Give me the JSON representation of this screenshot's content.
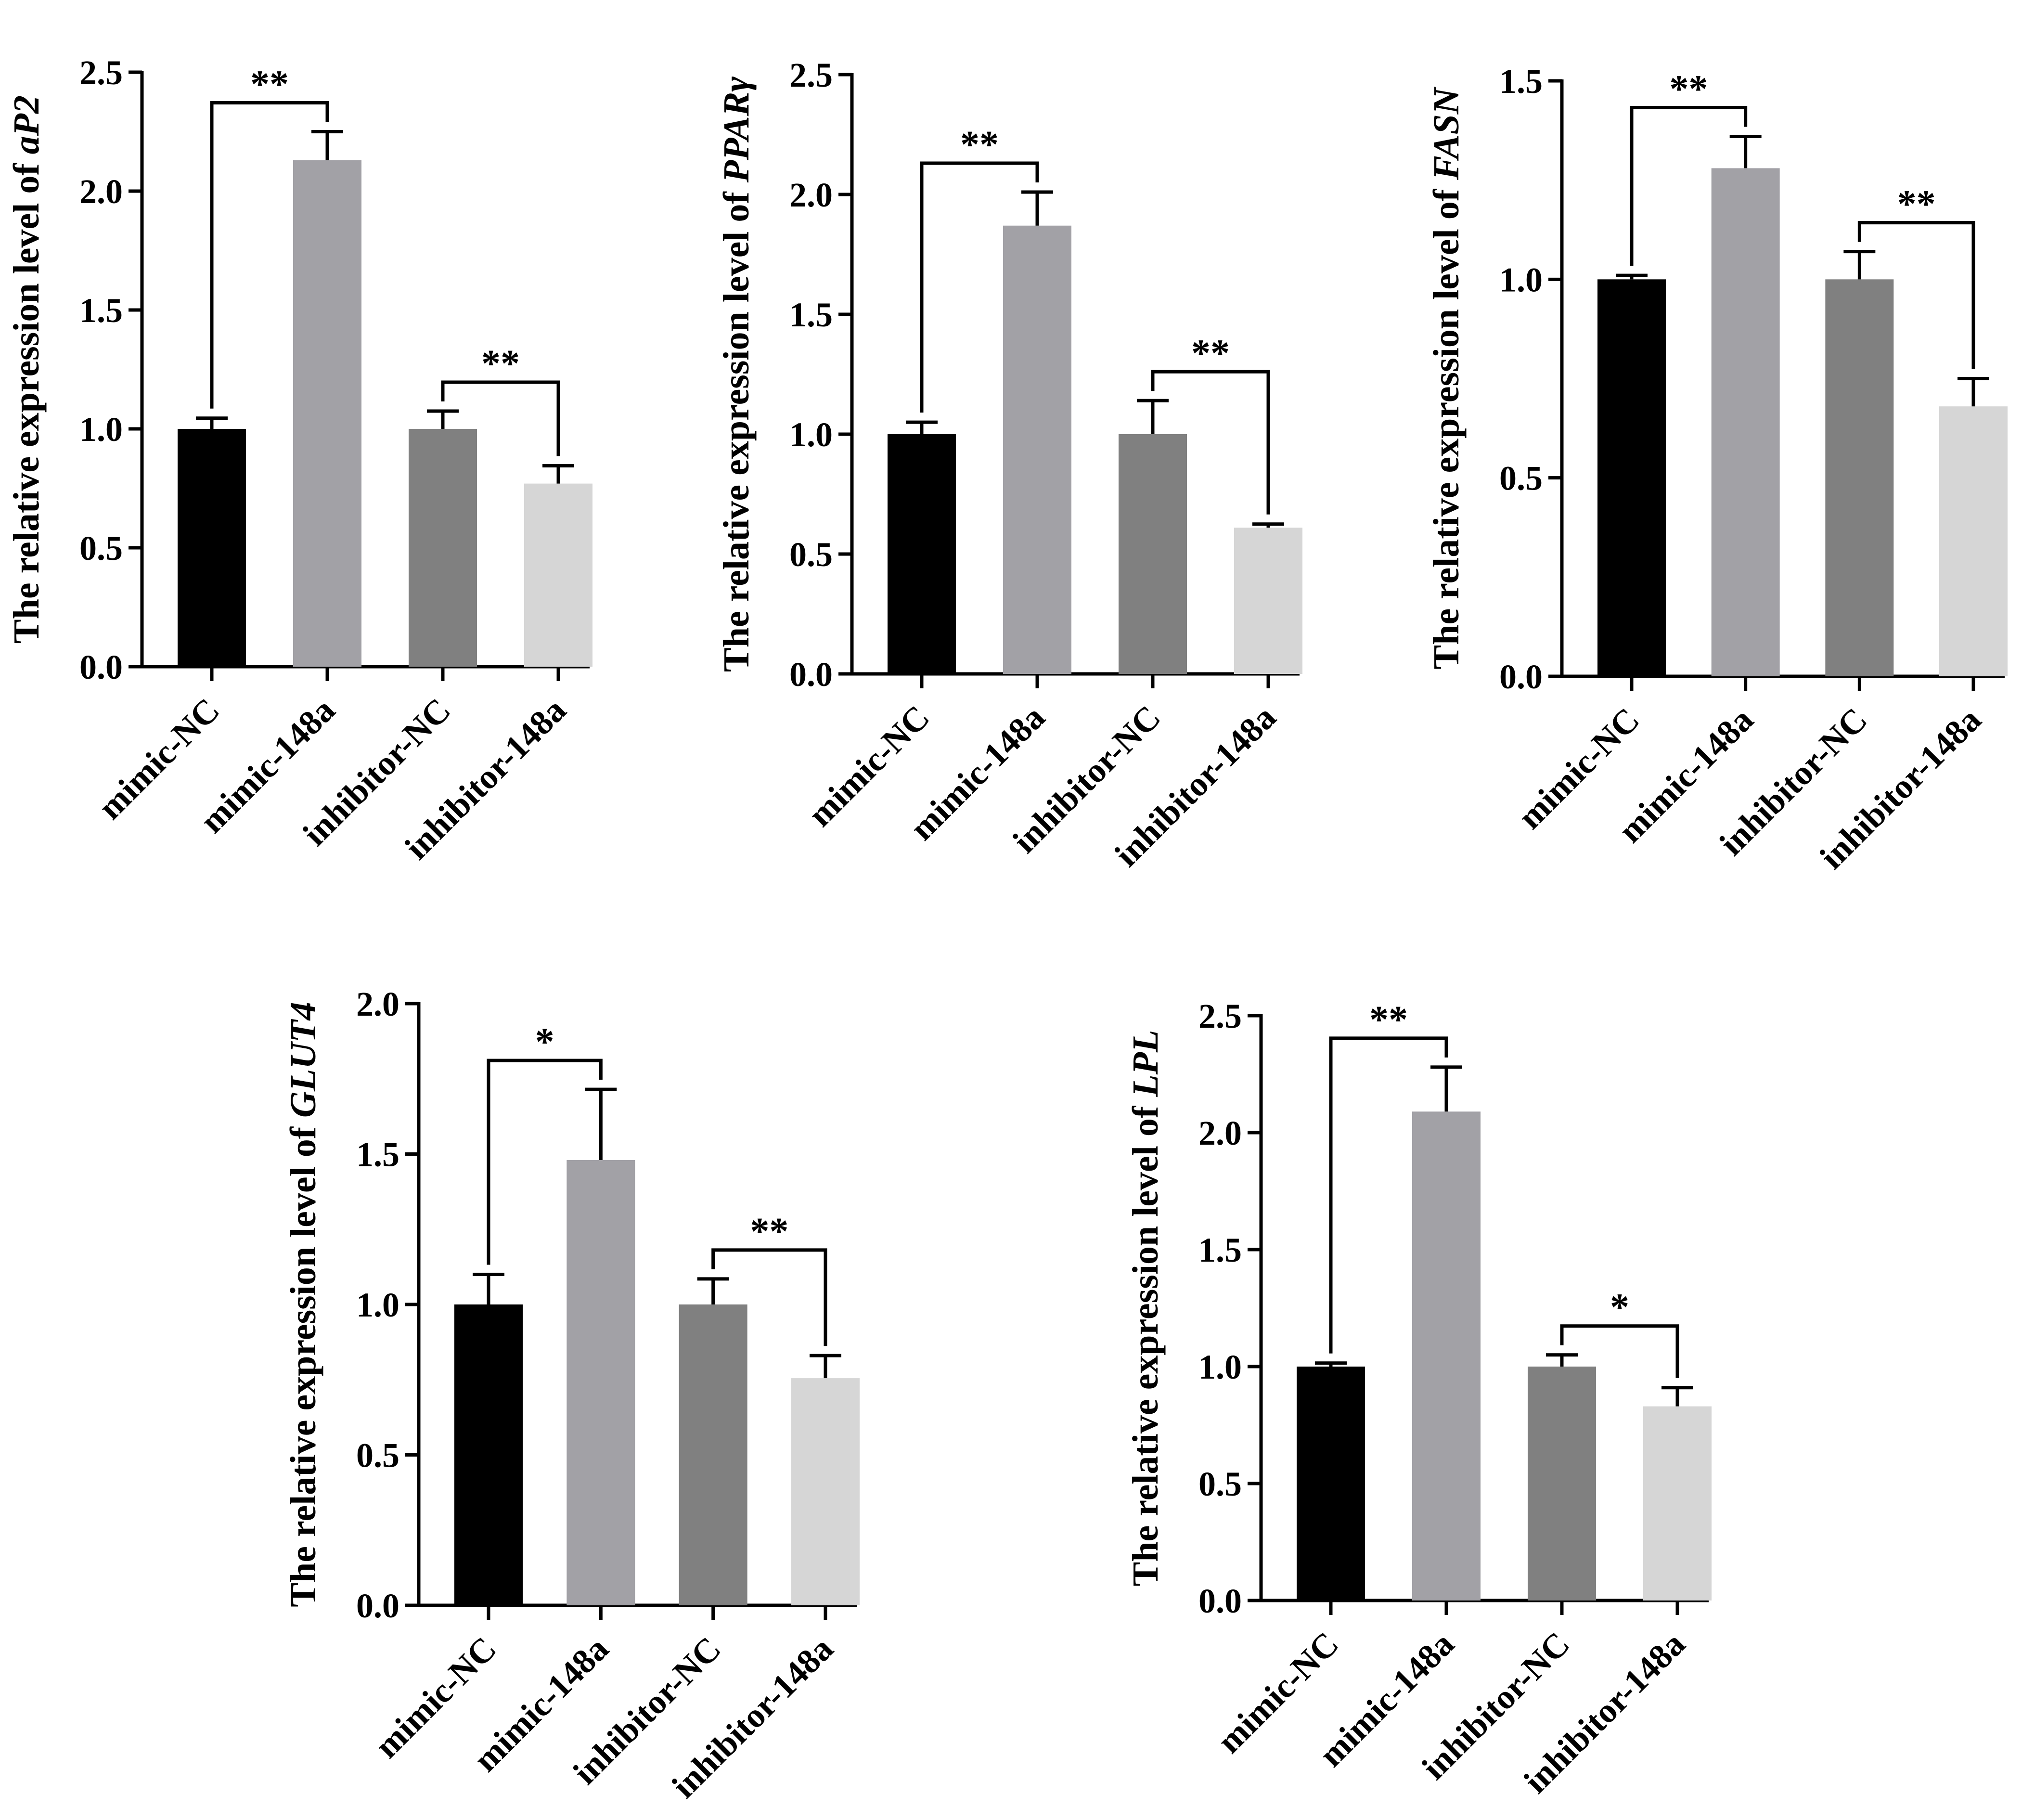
{
  "chart_data": [
    {
      "type": "bar",
      "categories": [
        "mimic-NC",
        "mimic-148a",
        "inhibitor-NC",
        "inhibitor-148a"
      ],
      "values": [
        1.0,
        2.13,
        1.0,
        0.77
      ],
      "errors": [
        0.045,
        0.12,
        0.075,
        0.075
      ],
      "ylabel_prefix": "The relative expression level of ",
      "ylabel_gene": "aP2",
      "ylim": [
        0,
        2.5
      ],
      "yticks": [
        "0.0",
        "0.5",
        "1.0",
        "1.5",
        "2.0",
        "2.5"
      ],
      "significance": [
        {
          "between": [
            0,
            1
          ],
          "label": "**"
        },
        {
          "between": [
            2,
            3
          ],
          "label": "**"
        }
      ],
      "bar_colors": [
        "#000000",
        "#a2a1a6",
        "#808080",
        "#d6d6d6"
      ]
    },
    {
      "type": "bar",
      "categories": [
        "mimic-NC",
        "mimic-148a",
        "inhibitor-NC",
        "inhibitor-148a"
      ],
      "values": [
        1.0,
        1.87,
        1.0,
        0.61
      ],
      "errors": [
        0.05,
        0.14,
        0.14,
        0.015
      ],
      "ylabel_prefix": "The relative expression level of ",
      "ylabel_gene": "PPARγ",
      "ylim": [
        0,
        2.5
      ],
      "yticks": [
        "0.0",
        "0.5",
        "1.0",
        "1.5",
        "2.0",
        "2.5"
      ],
      "significance": [
        {
          "between": [
            0,
            1
          ],
          "label": "**"
        },
        {
          "between": [
            2,
            3
          ],
          "label": "**"
        }
      ],
      "bar_colors": [
        "#000000",
        "#a2a1a6",
        "#808080",
        "#d6d6d6"
      ]
    },
    {
      "type": "bar",
      "categories": [
        "mimic-NC",
        "mimic-148a",
        "inhibitor-NC",
        "inhibitor-148a"
      ],
      "values": [
        1.0,
        1.28,
        1.0,
        0.68
      ],
      "errors": [
        0.01,
        0.08,
        0.07,
        0.07
      ],
      "ylabel_prefix": "The relative expression level of ",
      "ylabel_gene": "FASN",
      "ylim": [
        0,
        1.5
      ],
      "yticks": [
        "0.0",
        "0.5",
        "1.0",
        "1.5"
      ],
      "significance": [
        {
          "between": [
            0,
            1
          ],
          "label": "**"
        },
        {
          "between": [
            2,
            3
          ],
          "label": "**"
        }
      ],
      "bar_colors": [
        "#000000",
        "#a2a1a6",
        "#808080",
        "#d6d6d6"
      ]
    },
    {
      "type": "bar",
      "categories": [
        "mimic-NC",
        "mimic-148a",
        "inhibitor-NC",
        "inhibitor-148a"
      ],
      "values": [
        1.0,
        1.48,
        1.0,
        0.755
      ],
      "errors": [
        0.1,
        0.235,
        0.085,
        0.075
      ],
      "ylabel_prefix": "The relative expression level of ",
      "ylabel_gene": "GLUT4",
      "ylim": [
        0,
        2.0
      ],
      "yticks": [
        "0.0",
        "0.5",
        "1.0",
        "1.5",
        "2.0"
      ],
      "significance": [
        {
          "between": [
            0,
            1
          ],
          "label": "*"
        },
        {
          "between": [
            2,
            3
          ],
          "label": "**"
        }
      ],
      "bar_colors": [
        "#000000",
        "#a2a1a6",
        "#808080",
        "#d6d6d6"
      ]
    },
    {
      "type": "bar",
      "categories": [
        "mimic-NC",
        "mimic-148a",
        "inhibitor-NC",
        "inhibitor-148a"
      ],
      "values": [
        1.0,
        2.09,
        1.0,
        0.83
      ],
      "errors": [
        0.015,
        0.19,
        0.05,
        0.08
      ],
      "ylabel_prefix": "The relative expression level of ",
      "ylabel_gene": "LPL",
      "ylim": [
        0,
        2.5
      ],
      "yticks": [
        "0.0",
        "0.5",
        "1.0",
        "1.5",
        "2.0",
        "2.5"
      ],
      "significance": [
        {
          "between": [
            0,
            1
          ],
          "label": "**"
        },
        {
          "between": [
            2,
            3
          ],
          "label": "*"
        }
      ],
      "bar_colors": [
        "#000000",
        "#a2a1a6",
        "#808080",
        "#d6d6d6"
      ]
    }
  ]
}
